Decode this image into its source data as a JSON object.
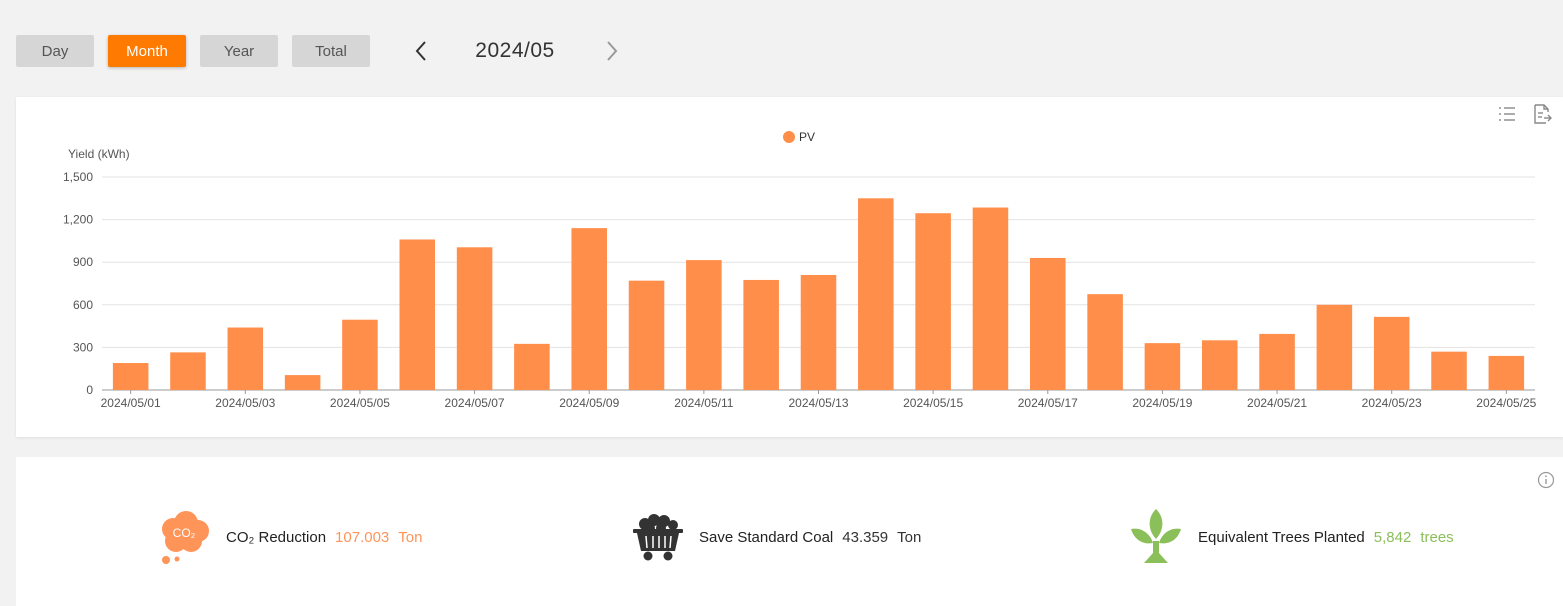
{
  "tabs": [
    {
      "label": "Day",
      "active": false
    },
    {
      "label": "Month",
      "active": true
    },
    {
      "label": "Year",
      "active": false
    },
    {
      "label": "Total",
      "active": false
    }
  ],
  "period": "2024/05",
  "colors": {
    "accent": "#ff7a00",
    "bar": "#ff8e4a",
    "co2": "#ff9459",
    "tree": "#8bbf5a",
    "coal": "#333333"
  },
  "chart_data": {
    "type": "bar",
    "ylabel": "Yield (kWh)",
    "ylim": [
      0,
      1500
    ],
    "yticks": [
      "0",
      "300",
      "600",
      "900",
      "1,200",
      "1,500"
    ],
    "legend": "top-center",
    "categories": [
      "2024/05/01",
      "2024/05/02",
      "2024/05/03",
      "2024/05/04",
      "2024/05/05",
      "2024/05/06",
      "2024/05/07",
      "2024/05/08",
      "2024/05/09",
      "2024/05/10",
      "2024/05/11",
      "2024/05/12",
      "2024/05/13",
      "2024/05/14",
      "2024/05/15",
      "2024/05/16",
      "2024/05/17",
      "2024/05/18",
      "2024/05/19",
      "2024/05/20",
      "2024/05/21",
      "2024/05/22",
      "2024/05/23",
      "2024/05/24",
      "2024/05/25"
    ],
    "visible_xticks": [
      "2024/05/01",
      "2024/05/03",
      "2024/05/05",
      "2024/05/07",
      "2024/05/09",
      "2024/05/11",
      "2024/05/13",
      "2024/05/15",
      "2024/05/17",
      "2024/05/19",
      "2024/05/21",
      "2024/05/23",
      "2024/05/25"
    ],
    "series": [
      {
        "name": "PV",
        "values": [
          190,
          265,
          440,
          105,
          495,
          1060,
          1005,
          325,
          1140,
          770,
          915,
          775,
          810,
          1350,
          1245,
          1285,
          930,
          675,
          330,
          350,
          395,
          600,
          515,
          270,
          240
        ]
      }
    ],
    "grid": true
  },
  "stats": {
    "co2": {
      "icon_text": "CO₂",
      "label": "CO₂ Reduction",
      "value": "107.003",
      "unit": "Ton"
    },
    "coal": {
      "label": "Save Standard Coal",
      "value": "43.359",
      "unit": "Ton"
    },
    "trees": {
      "label": "Equivalent Trees Planted",
      "value": "5,842",
      "unit": "trees"
    }
  },
  "icons": {
    "prev": "chevron-left-icon",
    "next": "chevron-right-icon",
    "list": "list-icon",
    "export": "export-icon",
    "info": "info-icon",
    "co2": "co2-cloud-icon",
    "coal": "coal-cart-icon",
    "tree": "tree-icon"
  }
}
